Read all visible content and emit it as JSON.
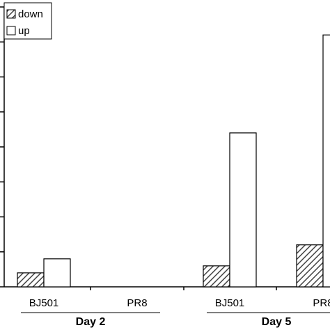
{
  "chart_data": {
    "type": "bar",
    "title": "",
    "xlabel": "",
    "ylabel": "",
    "ylim": [
      0,
      8
    ],
    "y_ticks": [
      0,
      1,
      2,
      3,
      4,
      5,
      6,
      7,
      8
    ],
    "y_tick_labels_visible": false,
    "categories": [
      "BJ501",
      "PR8",
      "BJ501",
      "PR8"
    ],
    "groups": [
      {
        "label": "Day 2",
        "categories": [
          0,
          1
        ]
      },
      {
        "label": "Day 5",
        "categories": [
          2,
          3
        ]
      }
    ],
    "series": [
      {
        "name": "down",
        "pattern": "hatched",
        "values": [
          0.4,
          0,
          0.6,
          1.2
        ]
      },
      {
        "name": "up",
        "pattern": "open",
        "values": [
          0.8,
          0,
          4.4,
          7.2
        ]
      }
    ],
    "series_note": "",
    "legend_position": "top-left",
    "grid": false,
    "colors": {
      "stroke": "#000000",
      "hatch_fill": "#555555",
      "open_fill": "#ffffff"
    }
  }
}
